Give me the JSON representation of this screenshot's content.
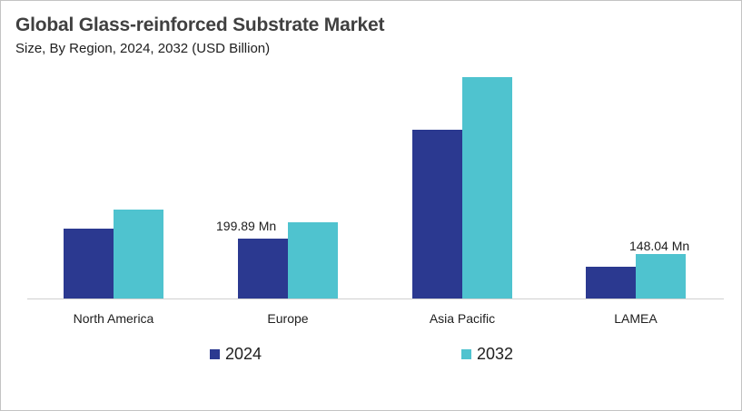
{
  "title": "Global Glass-reinforced Substrate Market",
  "subtitle": "Size, By Region, 2024, 2032 (USD Billion)",
  "colors": {
    "s2024": "#2b3990",
    "s2032": "#4fc3cf"
  },
  "legend": [
    {
      "label": "2024",
      "color": "#2b3990"
    },
    {
      "label": "2032",
      "color": "#4fc3cf"
    }
  ],
  "annotations": {
    "europe_2024": "199.89 Mn",
    "lamea_2032": "148.04 Mn"
  },
  "chart_data": {
    "type": "bar",
    "title": "Global Glass-reinforced Substrate Market",
    "subtitle": "Size, By Region, 2024, 2032 (USD Billion)",
    "categories": [
      "North America",
      "Europe",
      "Asia Pacific",
      "LAMEA"
    ],
    "series": [
      {
        "name": "2024",
        "values": [
          233,
          199.89,
          562,
          106
        ]
      },
      {
        "name": "2032",
        "values": [
          296,
          254,
          737,
          148.04
        ]
      }
    ],
    "units": "Mn (estimated from bar heights; labeled values exact)",
    "data_labels": [
      {
        "category": "Europe",
        "series": "2024",
        "text": "199.89 Mn"
      },
      {
        "category": "LAMEA",
        "series": "2032",
        "text": "148.04 Mn"
      }
    ],
    "xlabel": "",
    "ylabel": "",
    "grid": false,
    "legend_position": "bottom"
  }
}
